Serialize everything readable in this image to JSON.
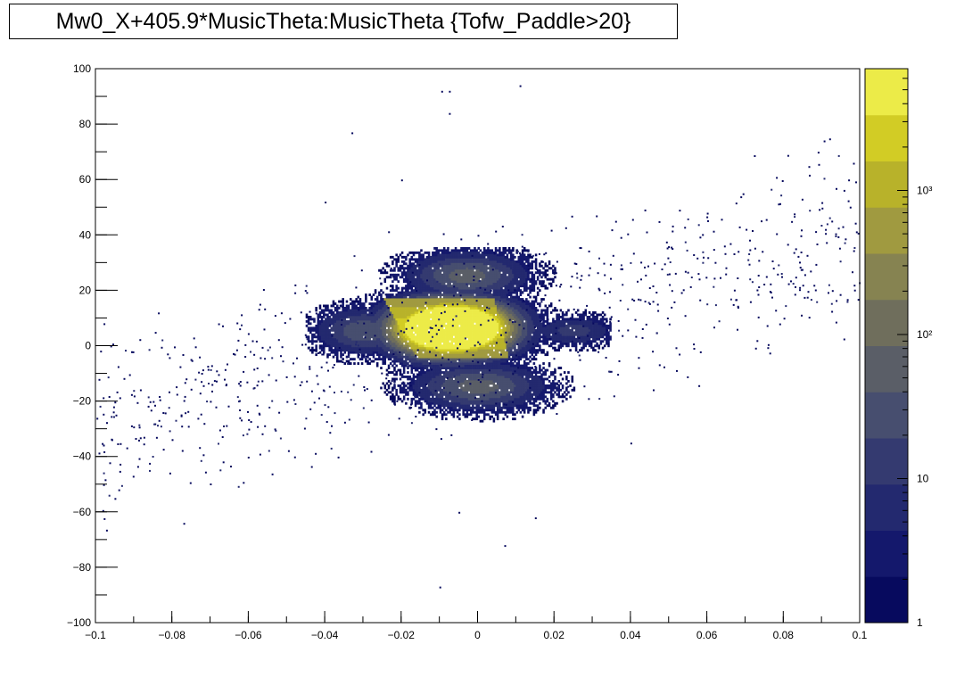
{
  "title": "Mw0_X+405.9*MusicTheta:MusicTheta {Tofw_Paddle>20}",
  "chart_data": {
    "type": "heatmap",
    "title": "Mw0_X+405.9*MusicTheta:MusicTheta {Tofw_Paddle>20}",
    "xlabel": "",
    "ylabel": "",
    "xlim": [
      -0.1,
      0.1
    ],
    "ylim": [
      -100,
      100
    ],
    "x_ticks": [
      "−0.1",
      "−0.08",
      "−0.06",
      "−0.04",
      "−0.02",
      "0",
      "0.02",
      "0.04",
      "0.06",
      "0.08",
      "0.1"
    ],
    "x_tick_values": [
      -0.1,
      -0.08,
      -0.06,
      -0.04,
      -0.02,
      0,
      0.02,
      0.04,
      0.06,
      0.08,
      0.1
    ],
    "y_ticks": [
      "−100",
      "−80",
      "−60",
      "−40",
      "−20",
      "0",
      "20",
      "40",
      "60",
      "80",
      "100"
    ],
    "y_tick_values": [
      -100,
      -80,
      -60,
      -40,
      -20,
      0,
      20,
      40,
      60,
      80,
      100
    ],
    "z_scale": "log",
    "z_range": [
      1,
      7000
    ],
    "z_ticks": [
      {
        "label": "1",
        "value": 1
      },
      {
        "label": "10",
        "value": 10
      },
      {
        "label": "10²",
        "value": 100
      },
      {
        "label": "10³",
        "value": 1000
      }
    ],
    "colorscale": [
      "#070a5e",
      "#14186c",
      "#23296f",
      "#343a70",
      "#474e6f",
      "#5a5e67",
      "#6f6e5c",
      "#868351",
      "#a09a40",
      "#b8b22a",
      "#d2cc25",
      "#eceb48"
    ],
    "regions": [
      {
        "kind": "band",
        "x_range": [
          -0.016,
          0.013
        ],
        "y_range": [
          -5,
          17
        ],
        "level": 3.5,
        "note": "peak"
      },
      {
        "kind": "blob",
        "x": -0.007,
        "y": 6,
        "sx": 0.011,
        "sy": 7,
        "level": 3.0
      },
      {
        "kind": "blob",
        "x": -0.003,
        "y": 25,
        "sx": 0.011,
        "sy": 6,
        "level": 0.8
      },
      {
        "kind": "blob",
        "x": 0.0,
        "y": -15,
        "sx": 0.012,
        "sy": 6,
        "level": 0.8
      },
      {
        "kind": "blob",
        "x": -0.03,
        "y": 5,
        "sx": 0.009,
        "sy": 6,
        "level": 0.7
      },
      {
        "kind": "blob",
        "x": 0.025,
        "y": 5,
        "sx": 0.008,
        "sy": 4,
        "level": 0.5
      }
    ],
    "scatter_points": [
      {
        "x": -0.0095,
        "y": 92
      },
      {
        "x": -0.0075,
        "y": 92
      },
      {
        "x": 0.011,
        "y": 94
      },
      {
        "x": -0.0075,
        "y": 84
      },
      {
        "x": -0.033,
        "y": 77
      },
      {
        "x": 0.089,
        "y": 70
      },
      {
        "x": 0.097,
        "y": 60
      },
      {
        "x": -0.04,
        "y": 52
      },
      {
        "x": 0.06,
        "y": 48
      },
      {
        "x": -0.077,
        "y": -64
      },
      {
        "x": -0.01,
        "y": -87
      },
      {
        "x": -0.005,
        "y": -60
      },
      {
        "x": -0.028,
        "y": -38
      },
      {
        "x": 0.05,
        "y": 8
      },
      {
        "x": 0.068,
        "y": 14
      },
      {
        "x": 0.073,
        "y": 2
      },
      {
        "x": 0.085,
        "y": 22
      },
      {
        "x": -0.085,
        "y": -20
      },
      {
        "x": -0.09,
        "y": -18
      },
      {
        "x": -0.095,
        "y": -55
      },
      {
        "x": -0.098,
        "y": -50
      },
      {
        "x": -0.06,
        "y": -30
      },
      {
        "x": -0.048,
        "y": -40
      },
      {
        "x": 0.04,
        "y": -35
      },
      {
        "x": 0.015,
        "y": -62
      },
      {
        "x": 0.007,
        "y": -72
      },
      {
        "x": -0.02,
        "y": 60
      },
      {
        "x": 0.0,
        "y": 40
      },
      {
        "x": 0.035,
        "y": 42
      },
      {
        "x": -0.05,
        "y": -20
      }
    ]
  }
}
